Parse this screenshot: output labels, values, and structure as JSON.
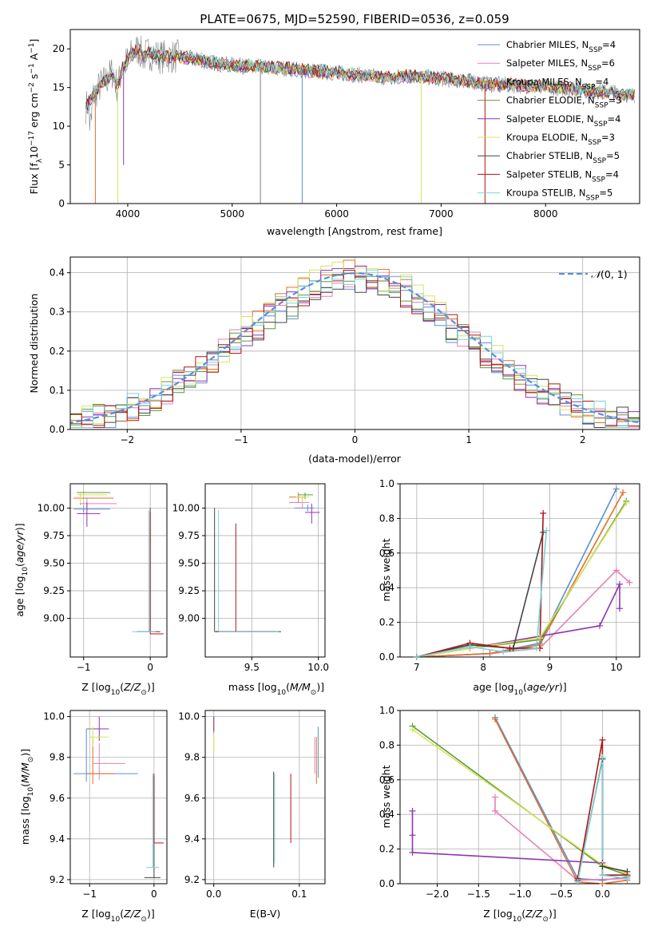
{
  "title": "PLATE=0675, MJD=52590, FIBERID=0536, z=0.059",
  "colors": {
    "chabrier_miles": "#5b8fd6",
    "salpeter_miles": "#e77fb7",
    "kroupa_miles": "#e0712a",
    "chabrier_elodie": "#5d9a3c",
    "salpeter_elodie": "#8e35b0",
    "kroupa_elodie": "#d9e45a",
    "chabrier_stelib": "#444444",
    "salpeter_stelib": "#b01515",
    "kroupa_stelib": "#78d3d8",
    "data": "#808080",
    "grid": "#b0b0b0"
  },
  "chart_data": [
    {
      "id": "spectrum",
      "type": "line",
      "title": "PLATE=0675, MJD=52590, FIBERID=0536, z=0.059",
      "xlabel": "wavelength [Angstrom, rest frame]",
      "ylabel": "Flux [fλ10⁻¹⁷ erg cm⁻² s⁻¹ A⁻¹]",
      "xlim": [
        3450,
        8900
      ],
      "ylim": [
        0,
        22.5
      ],
      "xticks": [
        4000,
        5000,
        6000,
        7000,
        8000
      ],
      "yticks": [
        0,
        5,
        10,
        15,
        20
      ],
      "legend_position": "top-right",
      "legend": [
        "Chabrier MILES, Nₛₛₚ=4",
        "Salpeter MILES, Nₛₛₚ=6",
        "Kroupa MILES, Nₛₛₚ=4",
        "Chabrier ELODIE, Nₛₛₚ=3",
        "Salpeter ELODIE, Nₛₛₚ=4",
        "Kroupa ELODIE, Nₛₛₚ=3",
        "Chabrier STELIB, Nₛₛₚ=5",
        "Salpeter STELIB, Nₛₛₚ=4",
        "Kroupa STELIB, Nₛₛₚ=5"
      ],
      "series": [
        {
          "name": "data",
          "x": [
            3600,
            3650,
            3700,
            3750,
            3800,
            3850,
            3900,
            3950,
            4000,
            4050,
            4100,
            4150,
            4200,
            4300,
            4400,
            4500,
            4700,
            4900,
            5100,
            5300,
            5500,
            5700,
            5900,
            6100,
            6300,
            6500,
            6700,
            6900,
            7100,
            7300,
            7400,
            7500,
            7700,
            7900,
            8100,
            8300,
            8500,
            8700,
            8850
          ],
          "y": [
            12.5,
            13.5,
            14.5,
            15.5,
            16,
            17,
            15,
            17.5,
            18.5,
            19.5,
            20,
            19,
            19.5,
            19,
            19,
            19,
            18.5,
            18,
            17.8,
            17.6,
            17.5,
            17.2,
            17.0,
            16.8,
            16.5,
            16.3,
            16.5,
            16.3,
            16.0,
            15.8,
            15.5,
            15.4,
            15.3,
            15.2,
            15.0,
            14.8,
            14.5,
            14.2,
            14.0
          ]
        },
        {
          "name": "model",
          "x": [
            3600,
            3650,
            3700,
            3750,
            3800,
            3850,
            3900,
            3950,
            4000,
            4050,
            4100,
            4150,
            4200,
            4300,
            4400,
            4500,
            4700,
            4900,
            5100,
            5300,
            5500,
            5700,
            5900,
            6100,
            6300,
            6500,
            6700,
            6900,
            7100,
            7300,
            7400,
            7500,
            7700,
            7900,
            8100,
            8300,
            8500,
            8700,
            8850
          ],
          "y": [
            12.5,
            13.5,
            14.5,
            15.5,
            16,
            17,
            15,
            17.5,
            18.5,
            19.5,
            20,
            19,
            19.5,
            19,
            19,
            19,
            18.5,
            18,
            17.8,
            17.6,
            17.5,
            17.2,
            17.0,
            16.8,
            16.5,
            16.3,
            16.5,
            16.3,
            16.0,
            15.8,
            15.5,
            15.4,
            15.3,
            15.2,
            15.0,
            14.8,
            14.5,
            14.2,
            14.0
          ]
        }
      ],
      "drop_lines": [
        {
          "x": 3690,
          "color": "kroupa_miles",
          "to": 0
        },
        {
          "x": 3905,
          "color": "kroupa_elodie",
          "to": 0
        },
        {
          "x": 3960,
          "color": "salpeter_elodie",
          "to": 5
        },
        {
          "x": 5270,
          "color": "data",
          "to": 0
        },
        {
          "x": 5670,
          "color": "chabrier_miles",
          "to": 0
        },
        {
          "x": 6810,
          "color": "kroupa_elodie",
          "to": 0
        },
        {
          "x": 7420,
          "color": "salpeter_stelib",
          "to": 0
        }
      ]
    },
    {
      "id": "residuals",
      "type": "line",
      "xlabel": "(data-model)/error",
      "ylabel": "Normed distribution",
      "xlim": [
        -2.5,
        2.5
      ],
      "ylim": [
        0,
        0.44
      ],
      "xticks": [
        -2,
        -1,
        0,
        1,
        2
      ],
      "yticks": [
        0.0,
        0.1,
        0.2,
        0.3,
        0.4
      ],
      "legend_position": "top-right",
      "legend": [
        "𝒩(0, 1)"
      ],
      "gaussian": {
        "mean": 0,
        "sigma": 1
      }
    },
    {
      "id": "age_vs_Z",
      "type": "scatter",
      "xlabel": "Z [log₁₀(Z/Z⊙)]",
      "ylabel": "age  [log₁₀(age/yr)]",
      "xlim": [
        -1.2,
        0.25
      ],
      "ylim": [
        8.65,
        10.22
      ],
      "xticks": [
        -1,
        0
      ],
      "yticks": [
        9.0,
        9.25,
        9.5,
        9.75,
        10.0
      ]
    },
    {
      "id": "age_vs_mass",
      "type": "scatter",
      "xlabel": "mass [log₁₀(M/M⊙)]",
      "ylabel": "",
      "xlim": [
        9.15,
        10.05
      ],
      "ylim": [
        8.65,
        10.22
      ],
      "xticks": [
        9.5,
        10.0
      ],
      "yticks": [
        9.0,
        9.25,
        9.5,
        9.75,
        10.0
      ]
    },
    {
      "id": "weight_vs_age",
      "type": "line",
      "xlabel": "age  [log₁₀(age/yr)]",
      "ylabel": "mass weight",
      "xlim": [
        6.75,
        10.35
      ],
      "ylim": [
        0,
        1.0
      ],
      "xticks": [
        7,
        8,
        9,
        10
      ],
      "yticks": [
        0.0,
        0.2,
        0.4,
        0.6,
        0.8,
        1.0
      ],
      "series": [
        {
          "name": "",
          "color": "chabrier_miles",
          "x": [
            7.0,
            8.1,
            8.85,
            10.0
          ],
          "y": [
            0.0,
            0.02,
            0.08,
            0.97
          ]
        },
        {
          "name": "",
          "color": "salpeter_miles",
          "x": [
            7.0,
            8.1,
            8.85,
            10.0,
            10.2
          ],
          "y": [
            0.0,
            0.02,
            0.05,
            0.5,
            0.43
          ]
        },
        {
          "name": "",
          "color": "kroupa_miles",
          "x": [
            7.0,
            8.1,
            8.85,
            10.1
          ],
          "y": [
            0.0,
            0.02,
            0.07,
            0.95
          ]
        },
        {
          "name": "",
          "color": "chabrier_elodie",
          "x": [
            7.0,
            7.8,
            8.85,
            10.15
          ],
          "y": [
            0.0,
            0.05,
            0.1,
            0.9
          ]
        },
        {
          "name": "",
          "color": "salpeter_elodie",
          "x": [
            7.0,
            7.8,
            9.75,
            10.05,
            10.05
          ],
          "y": [
            0.0,
            0.05,
            0.18,
            0.42,
            0.28
          ]
        },
        {
          "name": "",
          "color": "kroupa_elodie",
          "x": [
            7.0,
            7.8,
            8.85,
            10.15
          ],
          "y": [
            0.0,
            0.05,
            0.11,
            0.89
          ]
        },
        {
          "name": "",
          "color": "chabrier_stelib",
          "x": [
            7.0,
            7.8,
            8.45,
            8.9
          ],
          "y": [
            0.0,
            0.07,
            0.05,
            0.72
          ]
        },
        {
          "name": "",
          "color": "salpeter_stelib",
          "x": [
            7.0,
            7.8,
            8.4,
            8.85,
            8.9
          ],
          "y": [
            0.0,
            0.08,
            0.05,
            0.05,
            0.83
          ]
        },
        {
          "name": "",
          "color": "kroupa_stelib",
          "x": [
            7.0,
            7.8,
            8.3,
            8.8,
            8.95
          ],
          "y": [
            0.0,
            0.06,
            0.03,
            0.05,
            0.73
          ]
        }
      ]
    },
    {
      "id": "mass_vs_Z",
      "type": "scatter",
      "xlabel": "Z [log₁₀(Z/Z⊙)]",
      "ylabel": "mass [log₁₀(M/M⊙)]",
      "xlim": [
        -1.3,
        0.2
      ],
      "ylim": [
        9.18,
        10.03
      ],
      "xticks": [
        -1,
        0
      ],
      "yticks": [
        9.2,
        9.4,
        9.6,
        9.8,
        10.0
      ]
    },
    {
      "id": "mass_vs_ebv",
      "type": "scatter",
      "xlabel": "E(B-V)",
      "ylabel": "",
      "xlim": [
        -0.01,
        0.13
      ],
      "ylim": [
        9.18,
        10.03
      ],
      "xticks": [
        0.0,
        0.1
      ],
      "yticks": [
        9.2,
        9.4,
        9.6,
        9.8,
        10.0
      ]
    },
    {
      "id": "weight_vs_Z",
      "type": "line",
      "xlabel": "Z [log₁₀(Z/Z⊙)]",
      "ylabel": "mass weight",
      "xlim": [
        -2.45,
        0.45
      ],
      "ylim": [
        0,
        1.0
      ],
      "xticks": [
        -2.0,
        -1.5,
        -1.0,
        -0.5,
        0.0
      ],
      "yticks": [
        0.0,
        0.2,
        0.4,
        0.6,
        0.8,
        1.0
      ],
      "series": [
        {
          "name": "",
          "color": "chabrier_miles",
          "x": [
            -1.3,
            -0.3,
            0.0,
            0.3
          ],
          "y": [
            0.96,
            0.03,
            0.02,
            0.04
          ]
        },
        {
          "name": "",
          "color": "salpeter_miles",
          "x": [
            -1.3,
            -1.3,
            -0.3,
            0.3
          ],
          "y": [
            0.5,
            0.42,
            0.02,
            0.03
          ]
        },
        {
          "name": "",
          "color": "kroupa_miles",
          "x": [
            -1.3,
            -0.3,
            0.0,
            0.3
          ],
          "y": [
            0.95,
            0.01,
            0.0,
            0.02
          ]
        },
        {
          "name": "",
          "color": "chabrier_elodie",
          "x": [
            -2.3,
            0.0,
            0.3
          ],
          "y": [
            0.91,
            0.1,
            0.05
          ]
        },
        {
          "name": "",
          "color": "salpeter_elodie",
          "x": [
            -2.3,
            -2.3,
            -2.3,
            0.0
          ],
          "y": [
            0.42,
            0.28,
            0.18,
            0.12
          ]
        },
        {
          "name": "",
          "color": "kroupa_elodie",
          "x": [
            -2.3,
            0.0,
            0.3
          ],
          "y": [
            0.89,
            0.11,
            0.06
          ]
        },
        {
          "name": "",
          "color": "chabrier_stelib",
          "x": [
            -0.3,
            0.0,
            0.0,
            0.3
          ],
          "y": [
            0.02,
            0.72,
            0.1,
            0.07
          ]
        },
        {
          "name": "",
          "color": "salpeter_stelib",
          "x": [
            -0.3,
            0.0,
            0.0,
            0.3
          ],
          "y": [
            0.03,
            0.83,
            0.05,
            0.05
          ]
        },
        {
          "name": "",
          "color": "kroupa_stelib",
          "x": [
            -0.3,
            0.0,
            0.0,
            0.3
          ],
          "y": [
            0.01,
            0.73,
            0.05,
            0.03
          ]
        }
      ]
    }
  ]
}
